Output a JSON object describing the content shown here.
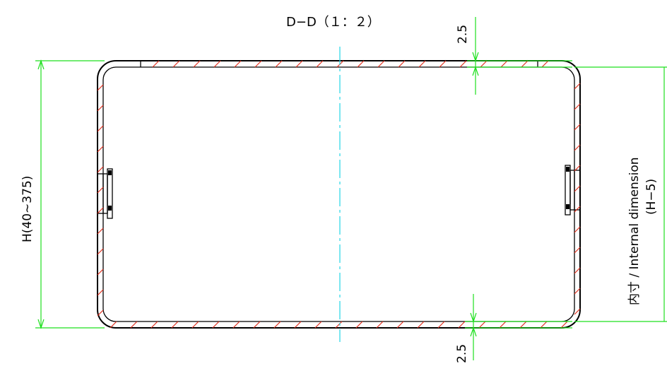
{
  "section_title": "D−D（１：２）",
  "dimensions": {
    "top_thickness": "2.5",
    "bottom_thickness": "2.5",
    "height": "H(40∼375)",
    "internal_line1": "内寸 / Internal dimension",
    "internal_line2": "(H−5)"
  },
  "colors": {
    "outline": "#000000",
    "hatch": "#e0301e",
    "dimension": "#1ee01e",
    "centerline": "#22d6e6"
  }
}
